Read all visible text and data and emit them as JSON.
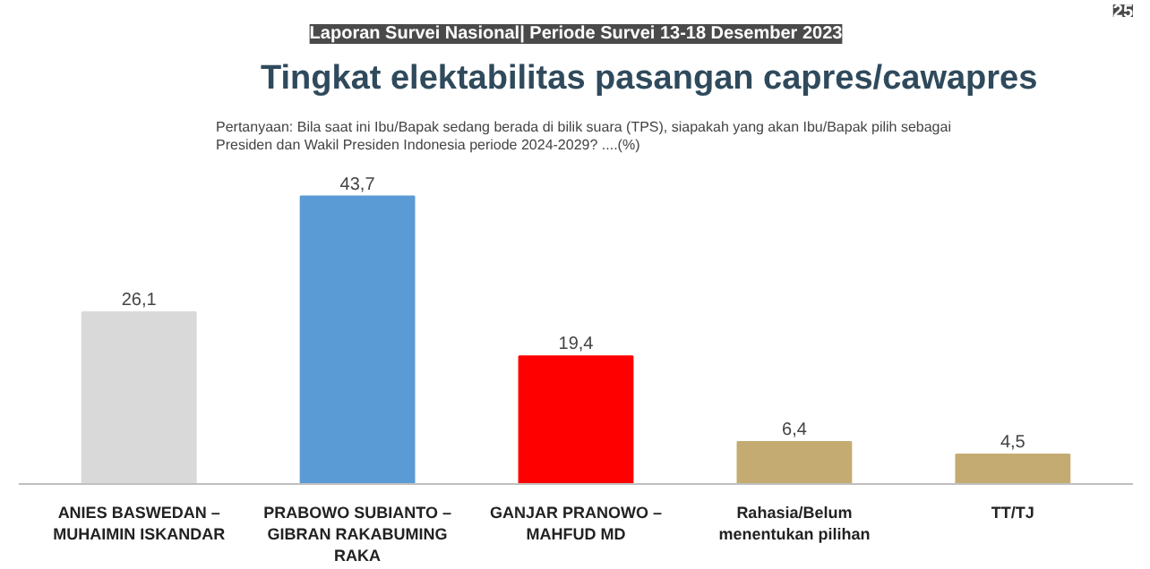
{
  "chart_data": {
    "type": "bar",
    "title": "Tingkat elektabilitas pasangan capres/cawapres",
    "subtitle": "Pertanyaan: Bila saat ini Ibu/Bapak sedang berada di bilik suara (TPS), siapakah yang akan Ibu/Bapak pilih sebagai Presiden dan Wakil Presiden Indonesia periode 2024-2029? ....(%)",
    "annotations": [
      "Laporan Survei Nasional| Periode Survei 13-18 Desember 2023",
      "25"
    ],
    "categories": [
      "ANIES BASWEDAN –\nMUHAIMIN ISKANDAR",
      "PRABOWO SUBIANTO –\nGIBRAN RAKABUMING\nRAKA",
      "GANJAR PRANOWO –\nMAHFUD MD",
      "Rahasia/Belum\nmenentukan pilihan",
      "TT/TJ"
    ],
    "values": [
      26.1,
      43.7,
      19.4,
      6.4,
      4.5
    ],
    "value_labels": [
      "26,1",
      "43,7",
      "19,4",
      "6,4",
      "4,5"
    ],
    "colors": [
      "#d9d9d9",
      "#5b9bd5",
      "#ff0000",
      "#c4ab72",
      "#c4ab72"
    ]
  }
}
